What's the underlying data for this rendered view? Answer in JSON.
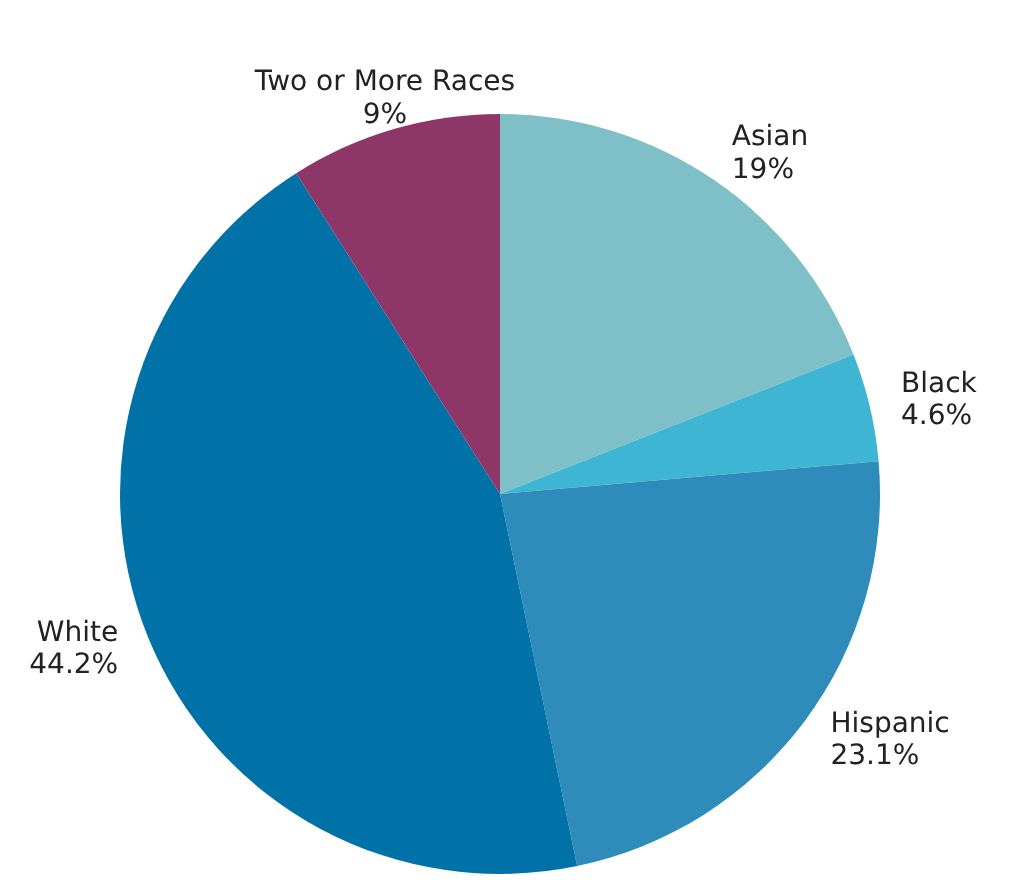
{
  "chart_data": {
    "type": "pie",
    "categories": [
      "Asian",
      "Black",
      "Hispanic",
      "White",
      "Two or More Races"
    ],
    "values": [
      19,
      4.6,
      23.1,
      44.2,
      9
    ],
    "value_labels": [
      "19%",
      "4.6%",
      "23.1%",
      "44.2%",
      "9%"
    ],
    "colors": [
      "#7fbfc8",
      "#3fb5d4",
      "#2e8bba",
      "#0072a8",
      "#8e3668"
    ],
    "legend": false
  }
}
